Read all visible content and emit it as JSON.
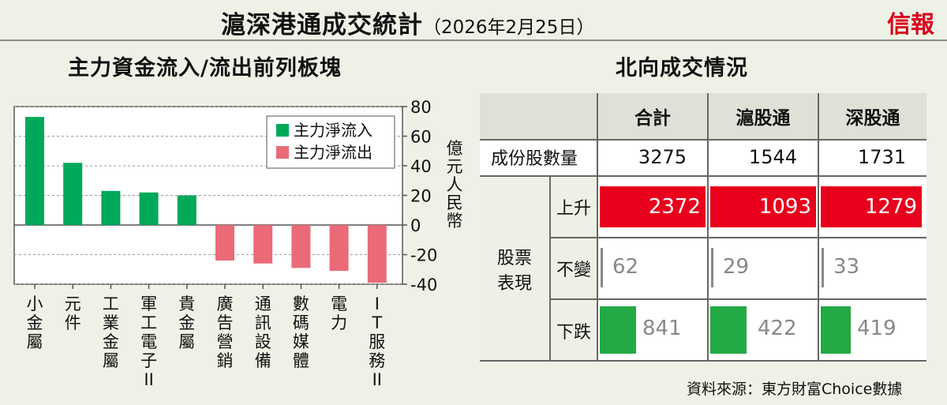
{
  "title": "滬深港通成交統計",
  "date": "（2026年2月25日）",
  "logo": "信報",
  "left_title": "主力資金流入/流出前列板塊",
  "right_title": "北向成交情況",
  "source": "資料來源：東方財富Choice數據",
  "colors": {
    "inflow": "#00a85a",
    "outflow": "#ea6a78",
    "rise": "#e8001c",
    "fall": "#22aa44"
  },
  "chart_data": {
    "type": "bar",
    "title": "主力資金流入/流出前列板塊",
    "ylabel": "億元人民幣",
    "ylim": [
      -40,
      80
    ],
    "yticks": [
      80,
      60,
      40,
      20,
      0,
      -20,
      -40
    ],
    "legend_position": "top-right",
    "legend": [
      "主力淨流入",
      "主力淨流出"
    ],
    "categories": [
      "小金屬",
      "元件",
      "工業金屬",
      "軍工電子II",
      "貴金屬",
      "廣告營銷",
      "通訊設備",
      "數碼媒體",
      "電力",
      "IT服務II"
    ],
    "category_labels": [
      [
        "小",
        "金",
        "屬"
      ],
      [
        "元",
        "件"
      ],
      [
        "工",
        "業",
        "金",
        "屬"
      ],
      [
        "軍",
        "工",
        "電",
        "子",
        "II"
      ],
      [
        "貴",
        "金",
        "屬"
      ],
      [
        "廣",
        "告",
        "營",
        "銷"
      ],
      [
        "通",
        "訊",
        "設",
        "備"
      ],
      [
        "數",
        "碼",
        "媒",
        "體"
      ],
      [
        "電",
        "力"
      ],
      [
        "I",
        "T",
        "服",
        "務",
        "II"
      ]
    ],
    "values": [
      73,
      42,
      23,
      22,
      20,
      -24,
      -26,
      -29,
      -31,
      -39
    ]
  },
  "table": {
    "headers": [
      "合計",
      "滬股通",
      "深股通"
    ],
    "row_volume_label": "成份股數量",
    "volume": [
      "3275",
      "1544",
      "1731"
    ],
    "group_label_1": "股票",
    "group_label_2": "表現",
    "rise_label": "上升",
    "rise": [
      2372,
      1093,
      1279
    ],
    "flat_label": "不變",
    "flat": [
      62,
      29,
      33
    ],
    "fall_label": "下跌",
    "fall": [
      841,
      422,
      419
    ]
  }
}
